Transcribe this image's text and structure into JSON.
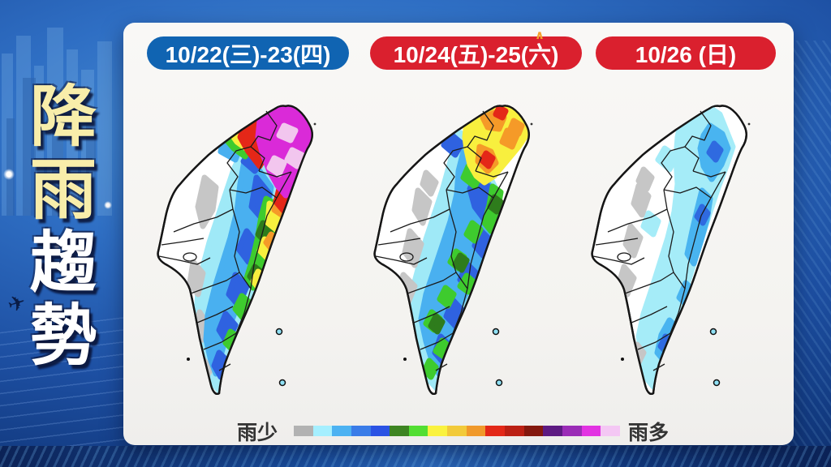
{
  "sidebar": {
    "title": "降雨趨勢",
    "chars": [
      {
        "ch": "降",
        "color": "#f8edaa"
      },
      {
        "ch": "雨",
        "color": "#f8edaa"
      },
      {
        "ch": "趨",
        "color": "#ffffff"
      },
      {
        "ch": "勢",
        "color": "#ffffff"
      }
    ],
    "plane_icon": "✈"
  },
  "panel": {
    "headers": [
      {
        "label": "10/22(三)-23(四)",
        "bg": "#1064b2",
        "text_color": "#ffffff"
      },
      {
        "label": "10/24(五)-25(六)",
        "bg": "#da202e",
        "text_color": "#ffffff",
        "accent": "∧",
        "accent_color": "#f6a12c"
      },
      {
        "label": "10/26 (日)",
        "bg": "#da202e",
        "text_color": "#ffffff"
      }
    ],
    "maps": [
      {
        "id": "rain-map-1",
        "date": "10/22(三)-23(四)",
        "summary": "Extreme rain over northern Taiwan (magenta/red), heavy along east ridge (green-orange), moderate east & south (blue/cyan), dry southwest plain (white)"
      },
      {
        "id": "rain-map-2",
        "date": "10/24(五)-25(六)",
        "summary": "Heavy rain north (yellow/orange, small red spots), showers over east and south (blue/green), dry west plain (white/gray ridge)"
      },
      {
        "id": "rain-map-3",
        "date": "10/26 (日)",
        "summary": "Light rain along eastern half (cyan/light blue patches), mostly dry west (white)"
      }
    ],
    "legend": {
      "less_label": "雨少",
      "more_label": "雨多",
      "scale_note": "rain amount increases left to right",
      "colors": [
        "#b2b2b2",
        "#a5efff",
        "#4cb2f2",
        "#3a7ce8",
        "#2b53e4",
        "#3d8422",
        "#52de33",
        "#faf23f",
        "#f2ca3a",
        "#f0992b",
        "#e32818",
        "#bb2014",
        "#84180e",
        "#5d1a82",
        "#9a2cb6",
        "#e233e2",
        "#f4c7f4"
      ]
    }
  },
  "colors": {
    "panel_bg": "#f7f6f3",
    "pill_blue": "#1064b2",
    "pill_red": "#da202e",
    "sidebar_yellow": "#f8edaa",
    "background_blue": "#2f6fc4"
  }
}
